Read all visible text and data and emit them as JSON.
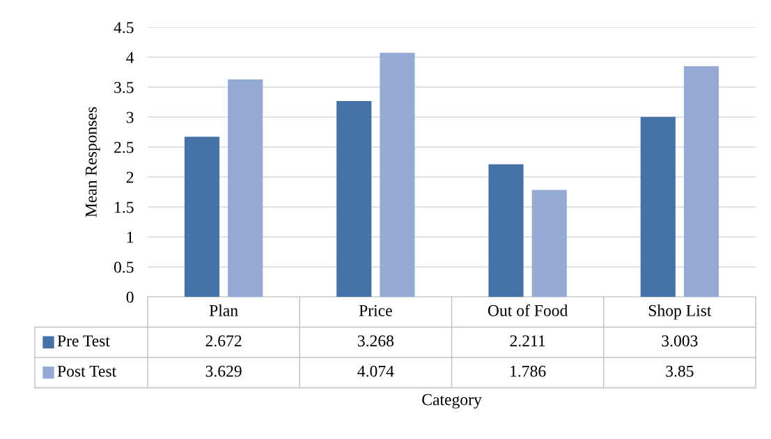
{
  "chart_data": {
    "type": "bar",
    "ylabel": "Mean Responses",
    "xlabel": "Category",
    "categories": [
      "Plan",
      "Price",
      "Out of Food",
      "Shop List"
    ],
    "series": [
      {
        "name": "Pre Test",
        "color": "#4672a8",
        "values": [
          2.672,
          3.268,
          2.211,
          3.003
        ]
      },
      {
        "name": "Post Test",
        "color": "#95abd3",
        "values": [
          3.629,
          4.074,
          1.786,
          3.85
        ]
      }
    ],
    "ylim": [
      0,
      4.5
    ],
    "yticks": [
      0,
      0.5,
      1,
      1.5,
      2,
      2.5,
      3,
      3.5,
      4,
      4.5
    ],
    "grid": "y",
    "legend": "bottom",
    "data_labels": true
  }
}
